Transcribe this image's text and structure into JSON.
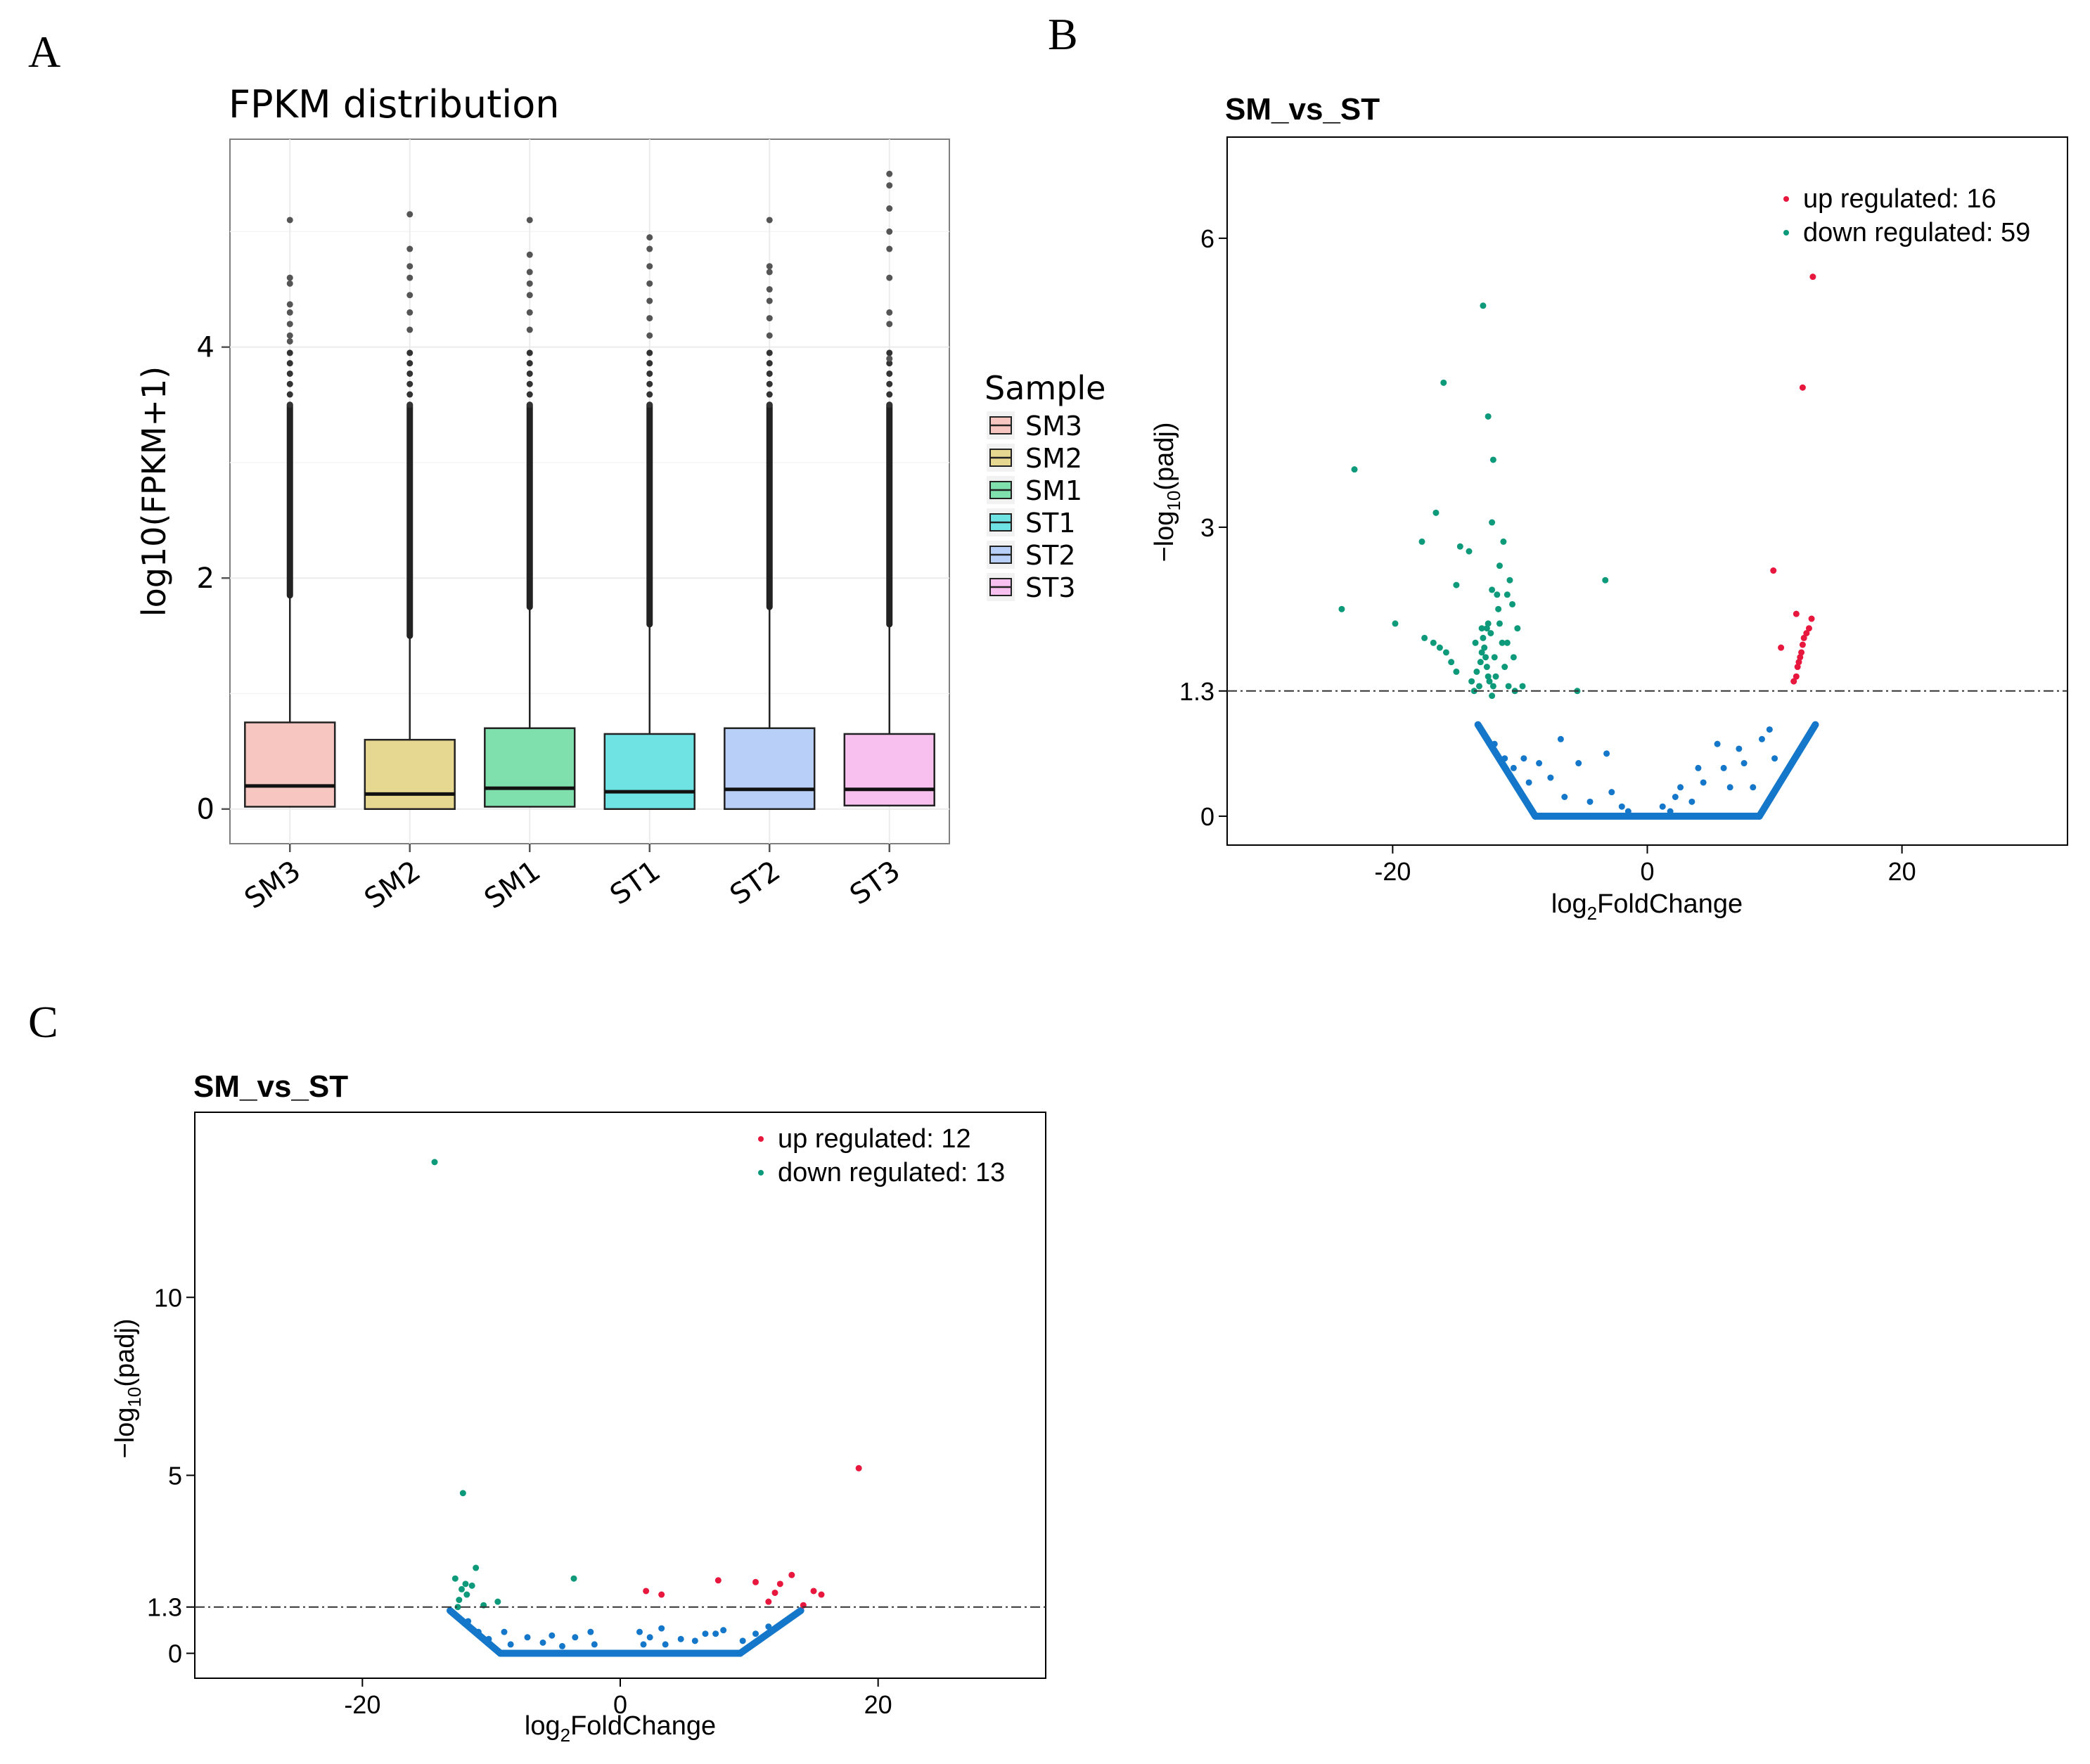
{
  "panels": {
    "a": {
      "letter": "A",
      "chart_data": {
        "type": "box",
        "title": "FPKM distribution",
        "xlabel": "",
        "ylabel": "log10(FPKM+1)",
        "ylim": [
          -0.3,
          5.8
        ],
        "yticks": [
          0,
          2,
          4
        ],
        "grid": true,
        "legend_title": "Sample",
        "legend_position": "right",
        "categories": [
          "SM3",
          "SM2",
          "SM1",
          "ST1",
          "ST2",
          "ST3"
        ],
        "colors": [
          "#f8c6c1",
          "#e6d891",
          "#7fe0ae",
          "#6fe2e4",
          "#b8cff8",
          "#f8c0ee"
        ],
        "series": [
          {
            "name": "SM3",
            "q1": 0.02,
            "median": 0.2,
            "q3": 0.75,
            "whisker_low": 0,
            "whisker_high": 1.85,
            "outlier_max": 5.1,
            "isolated_outliers": [
              4.6,
              4.55,
              4.37,
              4.3,
              4.2,
              4.1,
              4.05
            ]
          },
          {
            "name": "SM2",
            "q1": 0.0,
            "median": 0.13,
            "q3": 0.6,
            "whisker_low": 0,
            "whisker_high": 1.5,
            "outlier_max": 5.15,
            "isolated_outliers": [
              4.85,
              4.7,
              4.6,
              4.45,
              4.3,
              4.15
            ]
          },
          {
            "name": "SM1",
            "q1": 0.02,
            "median": 0.18,
            "q3": 0.7,
            "whisker_low": 0,
            "whisker_high": 1.75,
            "outlier_max": 5.1,
            "isolated_outliers": [
              4.8,
              4.65,
              4.55,
              4.45,
              4.3,
              4.15
            ]
          },
          {
            "name": "ST1",
            "q1": 0.0,
            "median": 0.15,
            "q3": 0.65,
            "whisker_low": 0,
            "whisker_high": 1.6,
            "outlier_max": 4.95,
            "isolated_outliers": [
              4.85,
              4.7,
              4.55,
              4.4,
              4.25,
              4.1
            ]
          },
          {
            "name": "ST2",
            "q1": 0.0,
            "median": 0.17,
            "q3": 0.7,
            "whisker_low": 0,
            "whisker_high": 1.75,
            "outlier_max": 5.1,
            "isolated_outliers": [
              4.7,
              4.65,
              4.5,
              4.4,
              4.25,
              4.1
            ]
          },
          {
            "name": "ST3",
            "q1": 0.03,
            "median": 0.17,
            "q3": 0.65,
            "whisker_low": 0,
            "whisker_high": 1.6,
            "outlier_max": 5.5,
            "isolated_outliers": [
              5.4,
              5.2,
              5.0,
              4.85,
              4.6,
              4.3,
              4.2,
              3.9
            ]
          }
        ]
      }
    },
    "b": {
      "letter": "B",
      "chart_data": {
        "type": "scatter",
        "title": "SM_vs_ST",
        "xlabel_main": "log",
        "xlabel_sub": "2",
        "xlabel_rest": "FoldChange",
        "ylabel_main": "−log",
        "ylabel_sub": "10",
        "ylabel_rest": "(padj)",
        "xlim": [
          -33,
          33
        ],
        "ylim": [
          -0.3,
          7.05
        ],
        "xticks": [
          -20,
          0,
          20
        ],
        "yticks": [
          0,
          1.3,
          3,
          6
        ],
        "threshold": 1.3,
        "legend_position": "top-right",
        "colors": {
          "up": "#e8173d",
          "down": "#0c9a7a",
          "ns": "#1577c9"
        },
        "legend": [
          {
            "key": "up",
            "label": "up regulated: 16"
          },
          {
            "key": "down",
            "label": "down regulated: 59"
          }
        ],
        "x_zero_range": [
          -8.8,
          8.8
        ],
        "v_edges": {
          "left_x": [
            -13.3,
            -8.8
          ],
          "right_x": [
            8.8,
            13.2
          ],
          "top_y": 0.95
        },
        "ns_points": [
          [
            -12.6,
            0.8
          ],
          [
            -12.0,
            0.75
          ],
          [
            -11.2,
            0.6
          ],
          [
            -10.5,
            0.5
          ],
          [
            -9.7,
            0.6
          ],
          [
            -9.3,
            0.35
          ],
          [
            -8.5,
            0.55
          ],
          [
            -7.6,
            0.4
          ],
          [
            -6.8,
            0.8
          ],
          [
            -6.5,
            0.2
          ],
          [
            -5.4,
            0.55
          ],
          [
            -4.5,
            0.15
          ],
          [
            -3.2,
            0.65
          ],
          [
            -2.8,
            0.25
          ],
          [
            -2.0,
            0.1
          ],
          [
            -1.5,
            0.05
          ],
          [
            1.2,
            0.1
          ],
          [
            1.8,
            0.05
          ],
          [
            2.2,
            0.2
          ],
          [
            2.6,
            0.3
          ],
          [
            3.5,
            0.15
          ],
          [
            4.0,
            0.5
          ],
          [
            4.4,
            0.35
          ],
          [
            5.5,
            0.75
          ],
          [
            6.0,
            0.5
          ],
          [
            6.5,
            0.3
          ],
          [
            7.2,
            0.7
          ],
          [
            7.6,
            0.55
          ],
          [
            8.3,
            0.3
          ],
          [
            9.0,
            0.8
          ],
          [
            9.6,
            0.9
          ],
          [
            10.0,
            0.6
          ]
        ],
        "up_points": [
          [
            13.0,
            5.6
          ],
          [
            12.2,
            4.45
          ],
          [
            9.9,
            2.55
          ],
          [
            11.7,
            2.1
          ],
          [
            12.9,
            2.05
          ],
          [
            11.5,
            1.4
          ],
          [
            11.7,
            1.45
          ],
          [
            11.8,
            1.55
          ],
          [
            11.9,
            1.6
          ],
          [
            12.0,
            1.65
          ],
          [
            12.1,
            1.7
          ],
          [
            12.2,
            1.78
          ],
          [
            12.3,
            1.85
          ],
          [
            12.5,
            1.9
          ],
          [
            12.7,
            1.95
          ],
          [
            10.5,
            1.75
          ]
        ],
        "down_points": [
          [
            -12.9,
            5.3
          ],
          [
            -16.0,
            4.5
          ],
          [
            -12.5,
            4.15
          ],
          [
            -12.1,
            3.7
          ],
          [
            -23.0,
            3.6
          ],
          [
            -16.6,
            3.15
          ],
          [
            -12.2,
            3.05
          ],
          [
            -17.7,
            2.85
          ],
          [
            -14.7,
            2.8
          ],
          [
            -14.0,
            2.75
          ],
          [
            -11.3,
            2.85
          ],
          [
            -11.6,
            2.6
          ],
          [
            -3.3,
            2.45
          ],
          [
            -10.8,
            2.45
          ],
          [
            -15.0,
            2.4
          ],
          [
            -12.2,
            2.35
          ],
          [
            -10.6,
            2.2
          ],
          [
            -11.0,
            2.3
          ],
          [
            -24.0,
            2.15
          ],
          [
            -11.7,
            2.15
          ],
          [
            -12.5,
            2.0
          ],
          [
            -19.8,
            2.0
          ],
          [
            -10.2,
            1.95
          ],
          [
            -17.5,
            1.85
          ],
          [
            -16.8,
            1.8
          ],
          [
            -16.3,
            1.75
          ],
          [
            -15.8,
            1.7
          ],
          [
            -15.4,
            1.6
          ],
          [
            -15.0,
            1.5
          ],
          [
            -13.0,
            1.95
          ],
          [
            -12.9,
            1.85
          ],
          [
            -12.8,
            1.75
          ],
          [
            -12.7,
            1.65
          ],
          [
            -12.6,
            1.55
          ],
          [
            -12.5,
            1.45
          ],
          [
            -12.4,
            1.4
          ],
          [
            -13.2,
            1.35
          ],
          [
            -13.1,
            1.6
          ],
          [
            -13.0,
            1.7
          ],
          [
            -12.3,
            1.9
          ],
          [
            -12.0,
            1.65
          ],
          [
            -11.9,
            1.45
          ],
          [
            -11.4,
            1.8
          ],
          [
            -11.2,
            1.55
          ],
          [
            -10.9,
            1.35
          ],
          [
            -10.5,
            1.65
          ],
          [
            -12.1,
            1.35
          ],
          [
            -13.4,
            1.5
          ],
          [
            -13.5,
            1.8
          ],
          [
            -11.6,
            2.0
          ],
          [
            -11.8,
            2.3
          ],
          [
            -10.4,
            1.3
          ],
          [
            -13.6,
            1.3
          ],
          [
            -12.6,
            1.95
          ],
          [
            -12.2,
            1.25
          ],
          [
            -9.8,
            1.35
          ],
          [
            -11.0,
            1.8
          ],
          [
            -13.8,
            1.4
          ],
          [
            -5.5,
            1.3
          ]
        ]
      }
    },
    "c": {
      "letter": "C",
      "chart_data": {
        "type": "scatter",
        "title": "SM_vs_ST",
        "xlabel_main": "log",
        "xlabel_sub": "2",
        "xlabel_rest": "FoldChange",
        "ylabel_main": "−log",
        "ylabel_sub": "10",
        "ylabel_rest": "(padj)",
        "xlim": [
          -33,
          33
        ],
        "ylim": [
          -0.7,
          15.2
        ],
        "xticks": [
          -20,
          0,
          20
        ],
        "yticks": [
          0,
          1.3,
          5,
          10
        ],
        "threshold": 1.3,
        "legend_position": "top-right",
        "colors": {
          "up": "#e8173d",
          "down": "#0c9a7a",
          "ns": "#1577c9"
        },
        "legend": [
          {
            "key": "up",
            "label": "up regulated: 12"
          },
          {
            "key": "down",
            "label": "down regulated: 13"
          }
        ],
        "x_zero_range": [
          -9.3,
          9.3
        ],
        "v_edges": {
          "left_x": [
            -13.2,
            -9.3
          ],
          "right_x": [
            9.3,
            14.0
          ],
          "top_y": 1.2
        },
        "ns_points": [
          [
            -11.8,
            0.9
          ],
          [
            -11.0,
            0.6
          ],
          [
            -10.2,
            0.4
          ],
          [
            -9.0,
            0.6
          ],
          [
            -8.5,
            0.25
          ],
          [
            -7.2,
            0.45
          ],
          [
            -6.0,
            0.3
          ],
          [
            -5.3,
            0.5
          ],
          [
            -4.5,
            0.2
          ],
          [
            -3.5,
            0.45
          ],
          [
            -2.3,
            0.6
          ],
          [
            -2.0,
            0.25
          ],
          [
            1.5,
            0.6
          ],
          [
            1.8,
            0.25
          ],
          [
            2.3,
            0.45
          ],
          [
            3.2,
            0.7
          ],
          [
            3.5,
            0.25
          ],
          [
            4.7,
            0.4
          ],
          [
            5.8,
            0.35
          ],
          [
            6.6,
            0.55
          ],
          [
            7.4,
            0.55
          ],
          [
            8.0,
            0.65
          ],
          [
            9.5,
            0.35
          ],
          [
            10.5,
            0.55
          ],
          [
            11.5,
            0.75
          ]
        ],
        "up_points": [
          [
            18.5,
            5.2
          ],
          [
            15.0,
            1.75
          ],
          [
            15.6,
            1.65
          ],
          [
            13.3,
            2.2
          ],
          [
            12.4,
            1.95
          ],
          [
            12.0,
            1.7
          ],
          [
            11.5,
            1.45
          ],
          [
            10.5,
            2.0
          ],
          [
            7.6,
            2.05
          ],
          [
            3.2,
            1.65
          ],
          [
            2.0,
            1.75
          ],
          [
            14.2,
            1.35
          ]
        ],
        "down_points": [
          [
            -14.4,
            13.8
          ],
          [
            -12.2,
            4.5
          ],
          [
            -11.2,
            2.4
          ],
          [
            -12.8,
            2.1
          ],
          [
            -12.3,
            1.8
          ],
          [
            -11.9,
            1.65
          ],
          [
            -3.6,
            2.1
          ],
          [
            -9.5,
            1.45
          ],
          [
            -12.5,
            1.5
          ],
          [
            -12.0,
            1.95
          ],
          [
            -11.5,
            1.9
          ],
          [
            -10.6,
            1.35
          ],
          [
            -12.6,
            1.3
          ]
        ]
      }
    }
  }
}
